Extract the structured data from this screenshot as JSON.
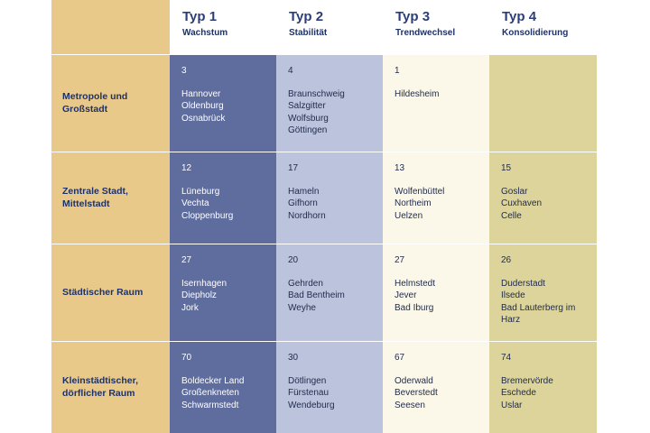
{
  "columns": [
    {
      "title": "Typ 1",
      "subtitle": "Wachstum",
      "color": "#5e6c9e"
    },
    {
      "title": "Typ 2",
      "subtitle": "Stabilität",
      "color": "#bcc4dd"
    },
    {
      "title": "Typ 3",
      "subtitle": "Trendwechsel",
      "color": "#fbf8ea"
    },
    {
      "title": "Typ 4",
      "subtitle": "Konsolidierung",
      "color": "#dcd49a"
    }
  ],
  "rows": [
    {
      "label_lines": [
        "Metropole und",
        "Großstadt"
      ],
      "cells": [
        {
          "count": "3",
          "cities": [
            "Hannover",
            "Oldenburg",
            "Osnabrück"
          ]
        },
        {
          "count": "4",
          "cities": [
            "Braunschweig",
            "Salzgitter",
            "Wolfsburg",
            "Göttingen"
          ]
        },
        {
          "count": "1",
          "cities": [
            "Hildesheim"
          ]
        },
        {
          "count": "",
          "cities": []
        }
      ]
    },
    {
      "label_lines": [
        "Zentrale Stadt,",
        "Mittelstadt"
      ],
      "cells": [
        {
          "count": "12",
          "cities": [
            "Lüneburg",
            "Vechta",
            "Cloppenburg"
          ]
        },
        {
          "count": "17",
          "cities": [
            "Hameln",
            "Gifhorn",
            "Nordhorn"
          ]
        },
        {
          "count": "13",
          "cities": [
            "Wolfenbüttel",
            "Northeim",
            "Uelzen"
          ]
        },
        {
          "count": "15",
          "cities": [
            "Goslar",
            "Cuxhaven",
            "Celle"
          ]
        }
      ]
    },
    {
      "label_lines": [
        "Städtischer Raum"
      ],
      "cells": [
        {
          "count": "27",
          "cities": [
            "Isernhagen",
            "Diepholz",
            "Jork"
          ]
        },
        {
          "count": "20",
          "cities": [
            "Gehrden",
            "Bad Bentheim",
            "Weyhe"
          ]
        },
        {
          "count": "27",
          "cities": [
            "Helmstedt",
            "Jever",
            "Bad Iburg"
          ]
        },
        {
          "count": "26",
          "cities": [
            "Duderstadt",
            "Ilsede",
            "Bad Lauterberg im",
            "Harz"
          ]
        }
      ]
    },
    {
      "label_lines": [
        "Kleinstädtischer,",
        "dörflicher Raum"
      ],
      "cells": [
        {
          "count": "70",
          "cities": [
            "Boldecker Land",
            "Großenkneten",
            "Schwarmstedt"
          ]
        },
        {
          "count": "30",
          "cities": [
            "Dötlingen",
            "Fürstenau",
            "Wendeburg"
          ]
        },
        {
          "count": "67",
          "cities": [
            "Oderwald",
            "Beverstedt",
            "Seesen"
          ]
        },
        {
          "count": "74",
          "cities": [
            "Bremervörde",
            "Eschede",
            "Uslar"
          ]
        }
      ]
    }
  ]
}
